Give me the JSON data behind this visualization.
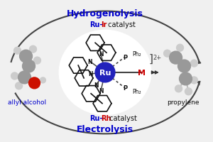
{
  "bg_color": "#f0f0f0",
  "title_top": "Hydrogenolysis",
  "title_bottom": "Electrolysis",
  "label_left": "allyl alcohol",
  "label_right": "propylene",
  "color_title": "#0000cc",
  "color_black": "#111111",
  "color_ru": "#0000cc",
  "color_ir": "#cc0000",
  "color_rh": "#cc0000",
  "color_m": "#cc0000",
  "color_arrow": "#444444",
  "color_bond": "#333333",
  "color_ring": "#111111",
  "color_gray_atom": "#999999",
  "color_gray_atom_dark": "#777777",
  "color_H_atom": "#cccccc",
  "color_O_atom": "#cc1100",
  "color_Ru_bg": "#2222bb",
  "figw": 3.0,
  "figh": 2.01,
  "dpi": 100
}
